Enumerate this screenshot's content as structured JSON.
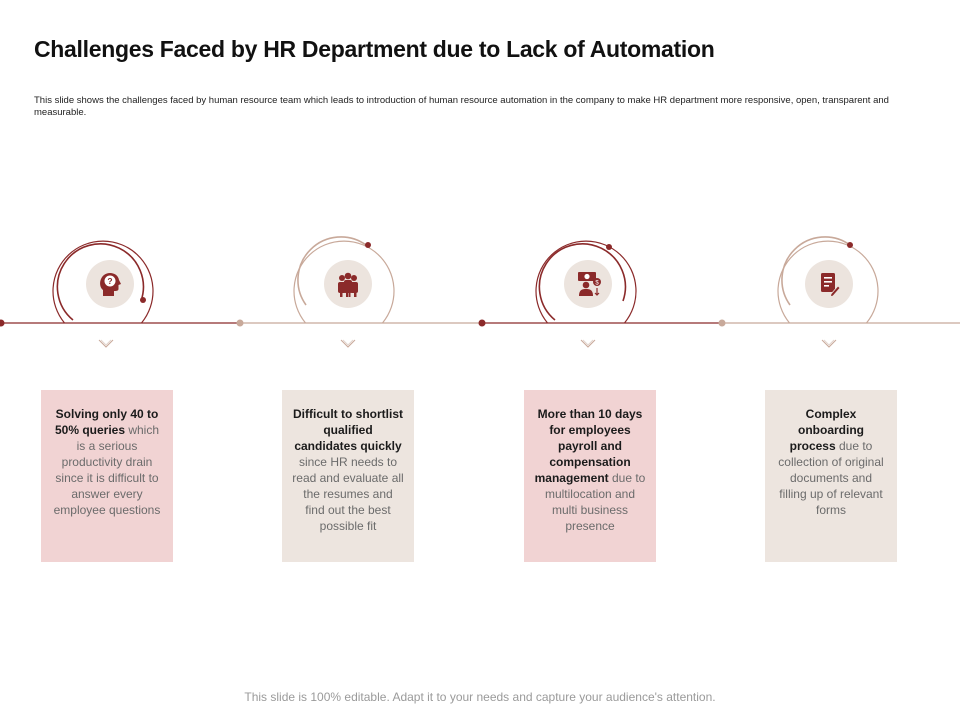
{
  "slide": {
    "title": "Challenges Faced by HR Department due to Lack of Automation",
    "subtitle": "This slide shows the challenges faced by human resource team which leads to introduction of human resource automation in the company to make HR department more responsive, open, transparent and measurable.",
    "footer": "This slide is 100% editable. Adapt it to your needs and capture your audience's attention."
  },
  "colors": {
    "maroon": "#8b2a2a",
    "tan": "#c8a99a",
    "pink_card": "#f1d3d3",
    "beige_card": "#ede5df",
    "icon_bg": "#ece4de"
  },
  "items": [
    {
      "icon": "head-question-icon",
      "bold": "Solving only 40 to 50% queries",
      "rest": "which is a serious productivity drain since it is difficult to answer every employee questions"
    },
    {
      "icon": "group-people-icon",
      "bold": "Difficult to shortlist qualified candidates quickly",
      "rest": "since HR needs to read and evaluate all the resumes and find out the best possible fit"
    },
    {
      "icon": "payroll-person-icon",
      "bold": "More than 10 days for employees payroll and compensation management",
      "rest": "due to multilocation and multi business presence"
    },
    {
      "icon": "document-edit-icon",
      "bold": "Complex onboarding process",
      "rest": "due to collection of original documents and filling up of relevant forms"
    }
  ]
}
